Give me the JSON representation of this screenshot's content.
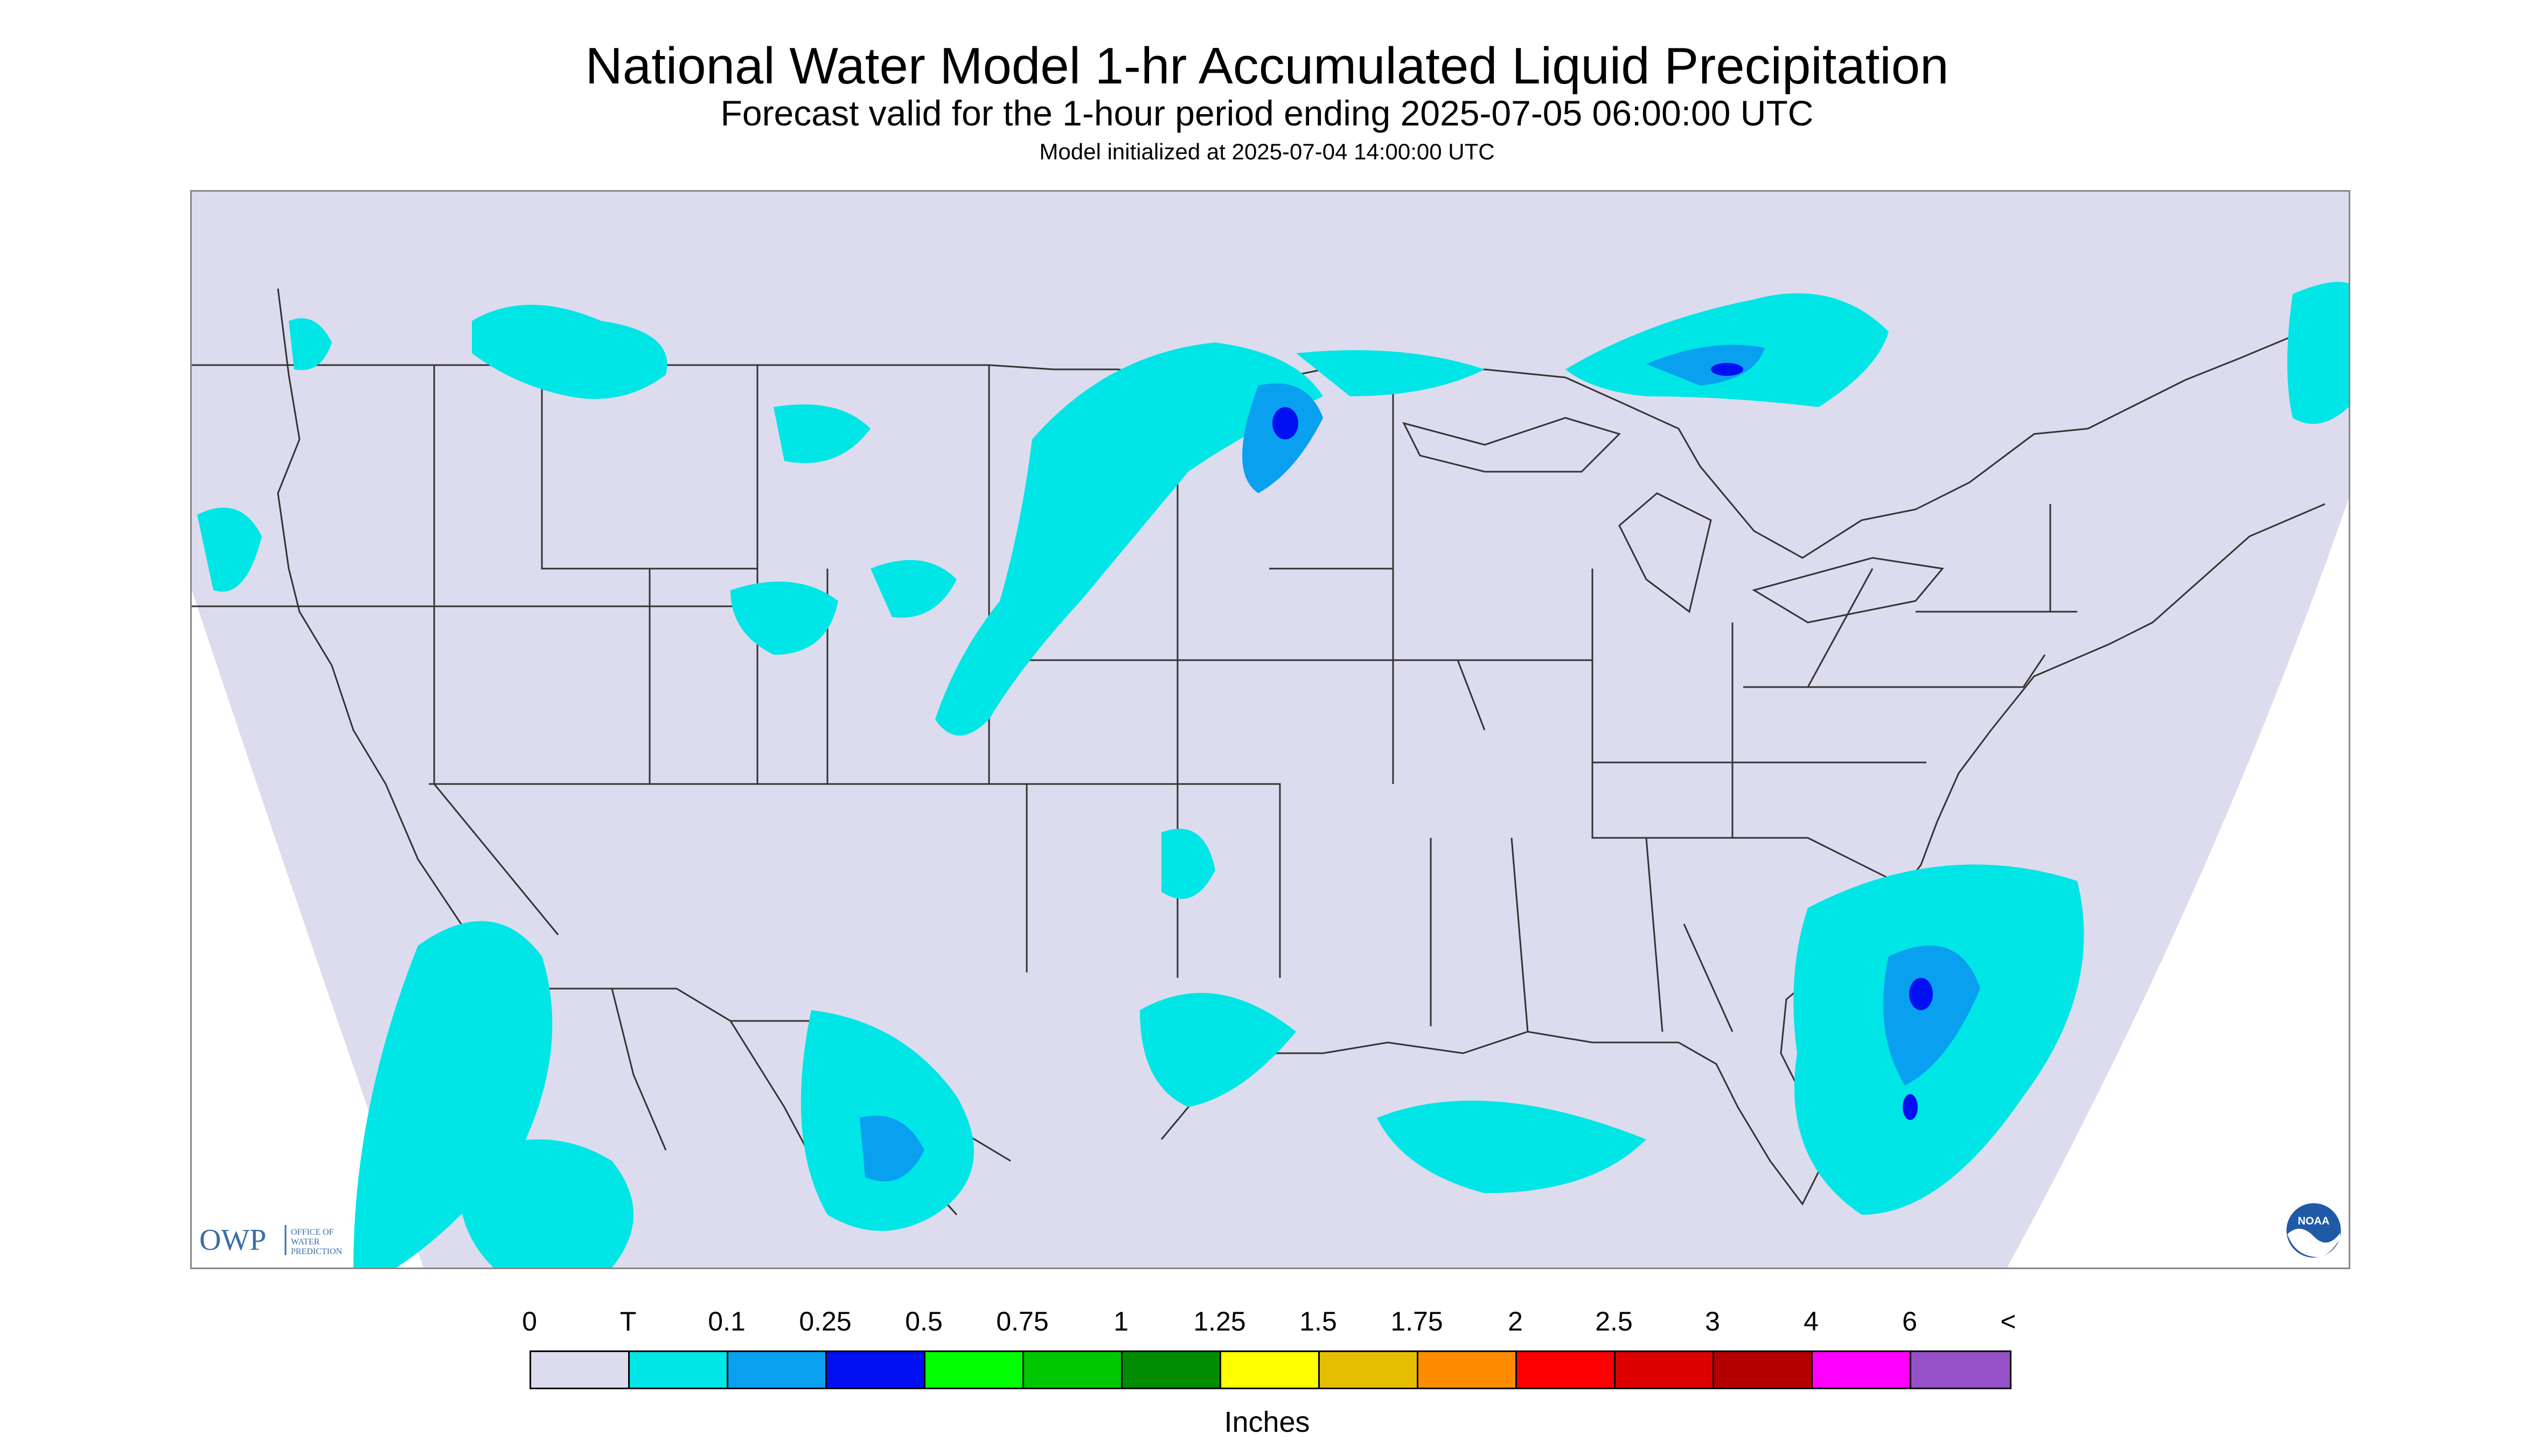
{
  "title": "National Water Model 1-hr Accumulated Liquid Precipitation",
  "subtitle": "Forecast valid for the 1-hour period ending 2025-07-05 06:00:00 UTC",
  "init_line": "Model initialized at 2025-07-04 14:00:00 UTC",
  "logos": {
    "owp": {
      "mark": "OWP",
      "text": [
        "OFFICE OF",
        "WATER",
        "PREDICTION"
      ]
    },
    "noaa": {
      "mark": "NOAA"
    }
  },
  "colors": {
    "background_land": "#dcdcee",
    "out_of_domain": "#ffffff",
    "boundary_lines": "#333333",
    "trace": "#00e5e5",
    "light": "#0aa0f0",
    "moderate": "#0010f0"
  },
  "legend": {
    "units": "Inches",
    "labels": [
      "0",
      "T",
      "0.1",
      "0.25",
      "0.5",
      "0.75",
      "1",
      "1.25",
      "1.5",
      "1.75",
      "2",
      "2.5",
      "3",
      "4",
      "6",
      "<"
    ],
    "bins": [
      {
        "color": "#dcdcee"
      },
      {
        "color": "#00e5e5"
      },
      {
        "color": "#0aa0f0"
      },
      {
        "color": "#0010f0"
      },
      {
        "color": "#00ff00"
      },
      {
        "color": "#00c800"
      },
      {
        "color": "#008c00"
      },
      {
        "color": "#ffff00"
      },
      {
        "color": "#e6be00"
      },
      {
        "color": "#ff8c00"
      },
      {
        "color": "#ff0000"
      },
      {
        "color": "#dc0000"
      },
      {
        "color": "#b40000"
      },
      {
        "color": "#ff00ff"
      },
      {
        "color": "#9650c8"
      }
    ]
  },
  "precip_areas": [
    {
      "region": "Northern Rockies / Montana",
      "category": "T"
    },
    {
      "region": "North Dakota to Minnesota band",
      "category": "0.25"
    },
    {
      "region": "Upper Great Lakes / Ontario",
      "category": "0.25"
    },
    {
      "region": "Nebraska / Kansas",
      "category": "0.1"
    },
    {
      "region": "Texas / Northern Mexico",
      "category": "0.25"
    },
    {
      "region": "Southeast US Atlantic coast offshore",
      "category": "0.5"
    },
    {
      "region": "Eastern Pacific off Baja California",
      "category": "T"
    },
    {
      "region": "Gulf of Mexico",
      "category": "T"
    }
  ]
}
